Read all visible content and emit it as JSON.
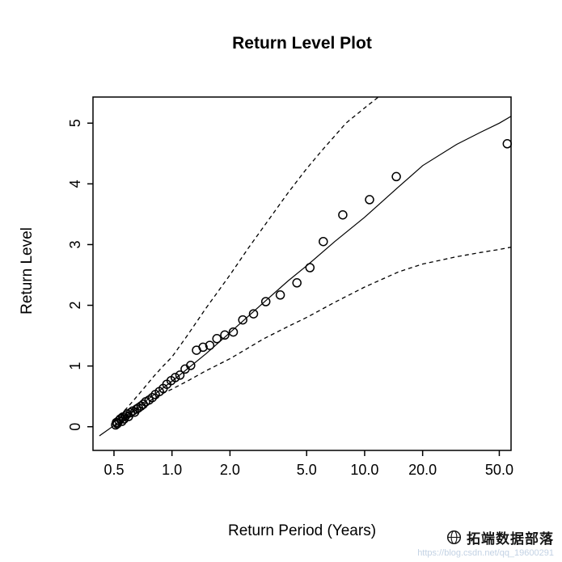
{
  "figure": {
    "title": "Return Level Plot",
    "xlabel": "Return Period (Years)",
    "ylabel": "Return Level"
  },
  "watermark": {
    "brand": "拓端数据部落",
    "url": "https://blog.csdn.net/qq_19600291"
  },
  "chart_data": {
    "type": "scatter",
    "title": "Return Level Plot",
    "xlabel": "Return Period (Years)",
    "ylabel": "Return Level",
    "x_scale": "log10",
    "grid": false,
    "x_ticks": [
      0.5,
      1.0,
      2.0,
      5.0,
      10.0,
      20.0,
      50.0
    ],
    "x_tick_labels": [
      "0.5",
      "1.0",
      "2.0",
      "5.0",
      "10.0",
      "20.0",
      "50.0"
    ],
    "y_ticks": [
      0,
      1,
      2,
      3,
      4,
      5
    ],
    "x_domain_log10": [
      -0.41,
      1.76
    ],
    "y_domain": [
      -0.39,
      5.43
    ],
    "colors": {
      "line": "#000000",
      "points": "#000000",
      "ci": "#000000"
    },
    "points": [
      [
        0.51,
        0.03
      ],
      [
        0.515,
        0.07
      ],
      [
        0.52,
        0.05
      ],
      [
        0.53,
        0.1
      ],
      [
        0.54,
        0.13
      ],
      [
        0.55,
        0.09
      ],
      [
        0.555,
        0.16
      ],
      [
        0.565,
        0.13
      ],
      [
        0.575,
        0.18
      ],
      [
        0.585,
        0.21
      ],
      [
        0.595,
        0.17
      ],
      [
        0.61,
        0.23
      ],
      [
        0.625,
        0.26
      ],
      [
        0.64,
        0.24
      ],
      [
        0.655,
        0.29
      ],
      [
        0.67,
        0.31
      ],
      [
        0.69,
        0.34
      ],
      [
        0.71,
        0.37
      ],
      [
        0.73,
        0.41
      ],
      [
        0.76,
        0.44
      ],
      [
        0.79,
        0.48
      ],
      [
        0.82,
        0.53
      ],
      [
        0.86,
        0.58
      ],
      [
        0.9,
        0.63
      ],
      [
        0.94,
        0.7
      ],
      [
        0.99,
        0.76
      ],
      [
        1.04,
        0.81
      ],
      [
        1.1,
        0.85
      ],
      [
        1.17,
        0.95
      ],
      [
        1.25,
        1.01
      ],
      [
        1.34,
        1.26
      ],
      [
        1.45,
        1.31
      ],
      [
        1.57,
        1.34
      ],
      [
        1.71,
        1.45
      ],
      [
        1.88,
        1.51
      ],
      [
        2.08,
        1.56
      ],
      [
        2.33,
        1.76
      ],
      [
        2.65,
        1.86
      ],
      [
        3.07,
        2.06
      ],
      [
        3.65,
        2.17
      ],
      [
        4.45,
        2.37
      ],
      [
        5.2,
        2.62
      ],
      [
        6.1,
        3.05
      ],
      [
        7.7,
        3.49
      ],
      [
        10.6,
        3.74
      ],
      [
        14.6,
        4.12
      ],
      [
        55,
        4.66
      ]
    ],
    "fit_line": [
      [
        0.42,
        -0.15
      ],
      [
        0.5,
        0.02
      ],
      [
        0.6,
        0.22
      ],
      [
        0.7,
        0.38
      ],
      [
        0.8,
        0.52
      ],
      [
        0.9,
        0.64
      ],
      [
        1.0,
        0.75
      ],
      [
        1.2,
        0.95
      ],
      [
        1.5,
        1.2
      ],
      [
        2.0,
        1.55
      ],
      [
        3.0,
        2.05
      ],
      [
        4.0,
        2.4
      ],
      [
        5.0,
        2.65
      ],
      [
        7.0,
        3.05
      ],
      [
        10.0,
        3.45
      ],
      [
        15.0,
        3.95
      ],
      [
        20.0,
        4.3
      ],
      [
        30.0,
        4.65
      ],
      [
        40.0,
        4.85
      ],
      [
        50.0,
        5.0
      ],
      [
        58.0,
        5.12
      ]
    ],
    "ci_upper": [
      [
        0.5,
        0.1
      ],
      [
        0.55,
        0.22
      ],
      [
        0.6,
        0.35
      ],
      [
        0.7,
        0.6
      ],
      [
        0.8,
        0.82
      ],
      [
        0.9,
        1.0
      ],
      [
        1.0,
        1.15
      ],
      [
        1.2,
        1.5
      ],
      [
        1.5,
        1.95
      ],
      [
        2.0,
        2.5
      ],
      [
        2.5,
        2.95
      ],
      [
        3.0,
        3.3
      ],
      [
        4.0,
        3.85
      ],
      [
        5.0,
        4.25
      ],
      [
        6.0,
        4.55
      ],
      [
        8.0,
        5.0
      ],
      [
        10.0,
        5.25
      ],
      [
        12.0,
        5.45
      ],
      [
        14.0,
        5.62
      ]
    ],
    "ci_lower": [
      [
        0.5,
        0.0
      ],
      [
        0.6,
        0.2
      ],
      [
        0.7,
        0.35
      ],
      [
        0.8,
        0.46
      ],
      [
        0.9,
        0.55
      ],
      [
        1.0,
        0.62
      ],
      [
        1.2,
        0.75
      ],
      [
        1.5,
        0.92
      ],
      [
        2.0,
        1.12
      ],
      [
        3.0,
        1.45
      ],
      [
        4.0,
        1.65
      ],
      [
        5.0,
        1.8
      ],
      [
        7.0,
        2.05
      ],
      [
        10.0,
        2.3
      ],
      [
        15.0,
        2.55
      ],
      [
        20.0,
        2.68
      ],
      [
        30.0,
        2.8
      ],
      [
        40.0,
        2.87
      ],
      [
        50.0,
        2.92
      ],
      [
        58.0,
        2.96
      ]
    ]
  }
}
